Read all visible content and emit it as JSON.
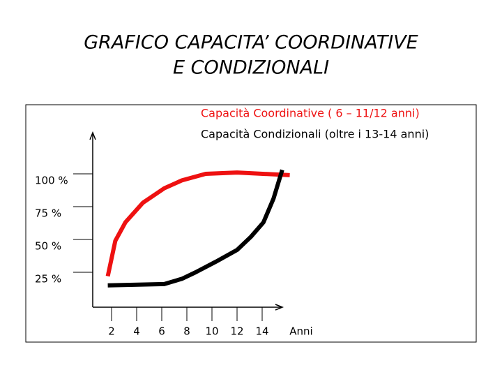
{
  "slide": {
    "title": [
      "GRAFICO CAPACITA’ COORDINATIVE",
      "E CONDIZIONALI"
    ]
  },
  "chart_data": {
    "type": "line",
    "xlabel": "Anni",
    "xlim": [
      0.5,
      15.5
    ],
    "xticks": [
      2,
      4,
      6,
      8,
      10,
      12,
      14
    ],
    "ylim": [
      0,
      125
    ],
    "yticks": [
      {
        "value": 100,
        "label": "100 %"
      },
      {
        "value": 75,
        "label": "75 %"
      },
      {
        "value": 50,
        "label": "50 %"
      },
      {
        "value": 25,
        "label": "25 %"
      }
    ],
    "series": [
      {
        "name": "Capacità Coordinative ( 6 – 11/12 anni)",
        "color": "#ee1111",
        "x": [
          1.7,
          2.3,
          3.1,
          4.5,
          6.2,
          7.6,
          9.5,
          12,
          16.2
        ],
        "values": [
          22,
          49,
          63,
          78,
          89,
          95,
          100,
          101,
          99
        ]
      },
      {
        "name": "Capacità Condizionali  (oltre i 13-14 anni)",
        "color": "#000000",
        "x": [
          1.7,
          6.2,
          7.6,
          8.7,
          10.3,
          12,
          13.1,
          14.1,
          14.9,
          15.6
        ],
        "values": [
          15,
          16,
          20,
          25,
          33,
          42,
          52,
          63,
          81,
          103
        ]
      }
    ]
  }
}
